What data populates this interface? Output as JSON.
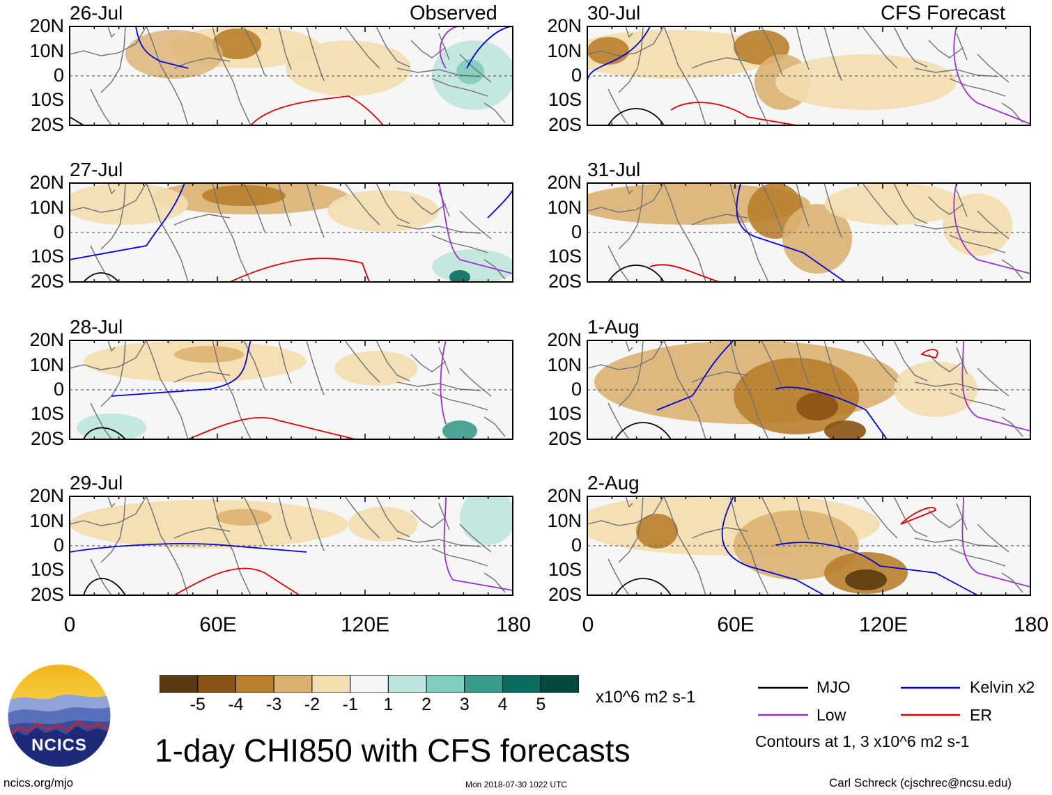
{
  "title": "1-day CHI850 with CFS forecasts",
  "headers": {
    "left": "Observed",
    "right": "CFS Forecast"
  },
  "left_column": [
    "26-Jul",
    "27-Jul",
    "28-Jul",
    "29-Jul"
  ],
  "right_column": [
    "30-Jul",
    "31-Jul",
    "1-Aug",
    "2-Aug"
  ],
  "lat_labels": [
    "20N",
    "10N",
    "0",
    "10S",
    "20S"
  ],
  "lon_labels": [
    "0",
    "60E",
    "120E",
    "180"
  ],
  "colorbar": {
    "tick_labels": [
      "-5",
      "-4",
      "-3",
      "-2",
      "-1",
      "1",
      "2",
      "3",
      "4",
      "5"
    ],
    "units": "x10^6 m2 s-1",
    "colors": [
      "#5a3a10",
      "#8a5316",
      "#b8802e",
      "#dcb272",
      "#f3deb0",
      "#f6f6f6",
      "#bfe6de",
      "#7fcdbf",
      "#3a9c8c",
      "#0a6b5e",
      "#044a3e"
    ]
  },
  "legend": {
    "items": [
      {
        "label": "MJO",
        "color": "#000000"
      },
      {
        "label": "Kelvin x2",
        "color": "#0000dd"
      },
      {
        "label": "Low",
        "color": "#9933cc"
      },
      {
        "label": "ER",
        "color": "#dd0000"
      }
    ],
    "note": "Contours at 1, 3 x10^6 m2 s-1"
  },
  "logo": {
    "text": "NCICS"
  },
  "footer": {
    "left": "ncics.org/mjo",
    "center": "Mon 2018-07-30 1022 UTC",
    "right": "Carl Schreck (cjschrec@ncsu.edu)"
  }
}
